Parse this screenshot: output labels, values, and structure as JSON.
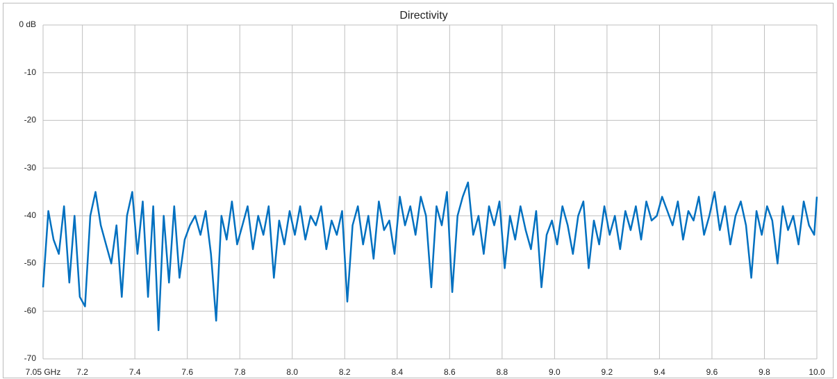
{
  "chart_data": {
    "type": "line",
    "title": "Directivity",
    "x": [
      7.05,
      7.07,
      7.09,
      7.11,
      7.13,
      7.15,
      7.17,
      7.19,
      7.21,
      7.23,
      7.25,
      7.27,
      7.29,
      7.31,
      7.33,
      7.35,
      7.37,
      7.39,
      7.41,
      7.43,
      7.45,
      7.47,
      7.49,
      7.51,
      7.53,
      7.55,
      7.57,
      7.59,
      7.61,
      7.63,
      7.65,
      7.67,
      7.69,
      7.71,
      7.73,
      7.75,
      7.77,
      7.79,
      7.81,
      7.83,
      7.85,
      7.87,
      7.89,
      7.91,
      7.93,
      7.95,
      7.97,
      7.99,
      8.01,
      8.03,
      8.05,
      8.07,
      8.09,
      8.11,
      8.13,
      8.15,
      8.17,
      8.19,
      8.21,
      8.23,
      8.25,
      8.27,
      8.29,
      8.31,
      8.33,
      8.35,
      8.37,
      8.39,
      8.41,
      8.43,
      8.45,
      8.47,
      8.49,
      8.51,
      8.53,
      8.55,
      8.57,
      8.59,
      8.61,
      8.63,
      8.65,
      8.67,
      8.69,
      8.71,
      8.73,
      8.75,
      8.77,
      8.79,
      8.81,
      8.83,
      8.85,
      8.87,
      8.89,
      8.91,
      8.93,
      8.95,
      8.97,
      8.99,
      9.01,
      9.03,
      9.05,
      9.07,
      9.09,
      9.11,
      9.13,
      9.15,
      9.17,
      9.19,
      9.21,
      9.23,
      9.25,
      9.27,
      9.29,
      9.31,
      9.33,
      9.35,
      9.37,
      9.39,
      9.41,
      9.43,
      9.45,
      9.47,
      9.49,
      9.51,
      9.53,
      9.55,
      9.57,
      9.59,
      9.61,
      9.63,
      9.65,
      9.67,
      9.69,
      9.71,
      9.73,
      9.75,
      9.77,
      9.79,
      9.81,
      9.83,
      9.85,
      9.87,
      9.89,
      9.91,
      9.93,
      9.95,
      9.97,
      9.99,
      10.0
    ],
    "series": [
      {
        "color": "#0070c0",
        "values": [
          -55,
          -39,
          -45,
          -48,
          -38,
          -54,
          -40,
          -57,
          -59,
          -40,
          -35,
          -42,
          -46,
          -50,
          -42,
          -57,
          -40,
          -35,
          -48,
          -37,
          -57,
          -38,
          -64,
          -40,
          -54,
          -38,
          -53,
          -45,
          -42,
          -40,
          -44,
          -39,
          -48,
          -62,
          -40,
          -45,
          -37,
          -46,
          -42,
          -38,
          -47,
          -40,
          -44,
          -38,
          -53,
          -41,
          -46,
          -39,
          -44,
          -38,
          -45,
          -40,
          -42,
          -38,
          -47,
          -41,
          -44,
          -39,
          -58,
          -42,
          -38,
          -46,
          -40,
          -49,
          -37,
          -43,
          -41,
          -48,
          -36,
          -42,
          -38,
          -44,
          -36,
          -40,
          -55,
          -38,
          -42,
          -35,
          -56,
          -40,
          -36,
          -33,
          -44,
          -40,
          -48,
          -38,
          -42,
          -37,
          -51,
          -40,
          -45,
          -38,
          -43,
          -47,
          -39,
          -55,
          -44,
          -41,
          -46,
          -38,
          -42,
          -48,
          -40,
          -37,
          -51,
          -41,
          -46,
          -38,
          -44,
          -40,
          -47,
          -39,
          -43,
          -38,
          -45,
          -37,
          -41,
          -40,
          -36,
          -39,
          -42,
          -37,
          -45,
          -39,
          -41,
          -36,
          -44,
          -40,
          -35,
          -43,
          -38,
          -46,
          -40,
          -37,
          -42,
          -53,
          -39,
          -44,
          -38,
          -41,
          -50,
          -38,
          -43,
          -40,
          -46,
          -37,
          -42,
          -44,
          -36
        ]
      }
    ],
    "xlim": [
      7.05,
      10.0
    ],
    "xticks": [
      {
        "value": 7.05,
        "label": "7.05 GHz"
      },
      7.2,
      7.4,
      7.6,
      7.8,
      {
        "value": 8,
        "label": "8.0"
      },
      8.2,
      8.4,
      8.6,
      8.8,
      {
        "value": 9,
        "label": "9.0"
      },
      9.2,
      9.4,
      9.6,
      9.8,
      {
        "value": 10,
        "label": "10.0"
      }
    ],
    "ylim": [
      -70,
      0
    ],
    "yticks": [
      {
        "value": 0,
        "label": "0 dB"
      },
      -10,
      -20,
      -30,
      -40,
      -50,
      -60,
      -70
    ],
    "grid": true
  }
}
